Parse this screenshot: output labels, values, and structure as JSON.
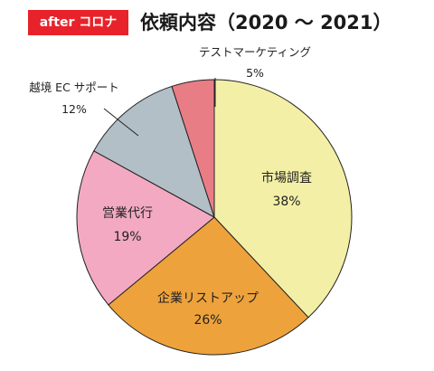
{
  "header": {
    "badge": "after コロナ",
    "title": "依頼内容（2020 〜 2021）"
  },
  "colors": {
    "badge_bg": "#e8222a",
    "outline": "#222222"
  },
  "chart_data": {
    "type": "pie",
    "title": "依頼内容（2020 〜 2021）",
    "slices": [
      {
        "label": "市場調査",
        "value": 38,
        "percent_label": "38%",
        "color": "#f3efa6"
      },
      {
        "label": "企業リストアップ",
        "value": 26,
        "percent_label": "26%",
        "color": "#eea23c"
      },
      {
        "label": "営業代行",
        "value": 19,
        "percent_label": "19%",
        "color": "#f3a9c2"
      },
      {
        "label": "越境 EC サポート",
        "value": 12,
        "percent_label": "12%",
        "color": "#b3bfc7"
      },
      {
        "label": "テストマーケティング",
        "value": 5,
        "percent_label": "5%",
        "color": "#e97d86"
      }
    ],
    "start_angle": "12 o'clock",
    "direction": "clockwise",
    "legend": "none"
  }
}
